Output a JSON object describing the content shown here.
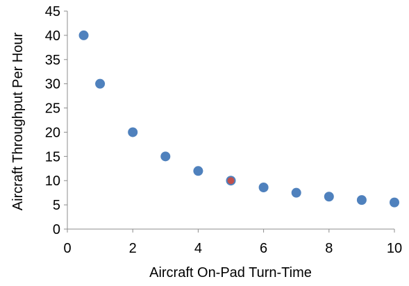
{
  "chart_data": {
    "type": "scatter",
    "title": "",
    "xlabel": "Aircraft On-Pad Turn-Time",
    "ylabel": "Aircraft Throughput Per Hour",
    "xlim": [
      0,
      10
    ],
    "ylim": [
      0,
      45
    ],
    "x_ticks": [
      0,
      2,
      4,
      6,
      8,
      10
    ],
    "y_ticks": [
      0,
      5,
      10,
      15,
      20,
      25,
      30,
      35,
      40,
      45
    ],
    "grid": false,
    "legend": "none",
    "series": [
      {
        "color": "#4f81bd",
        "points": [
          {
            "x": 0.5,
            "y": 40
          },
          {
            "x": 1,
            "y": 30
          },
          {
            "x": 2,
            "y": 20
          },
          {
            "x": 3,
            "y": 15
          },
          {
            "x": 4,
            "y": 12
          },
          {
            "x": 5,
            "y": 10
          },
          {
            "x": 6,
            "y": 8.6
          },
          {
            "x": 7,
            "y": 7.5
          },
          {
            "x": 8,
            "y": 6.7
          },
          {
            "x": 9,
            "y": 6
          },
          {
            "x": 10,
            "y": 5.5
          }
        ]
      }
    ],
    "highlight": {
      "x": 5,
      "y": 10,
      "color": "#c0504d"
    }
  }
}
